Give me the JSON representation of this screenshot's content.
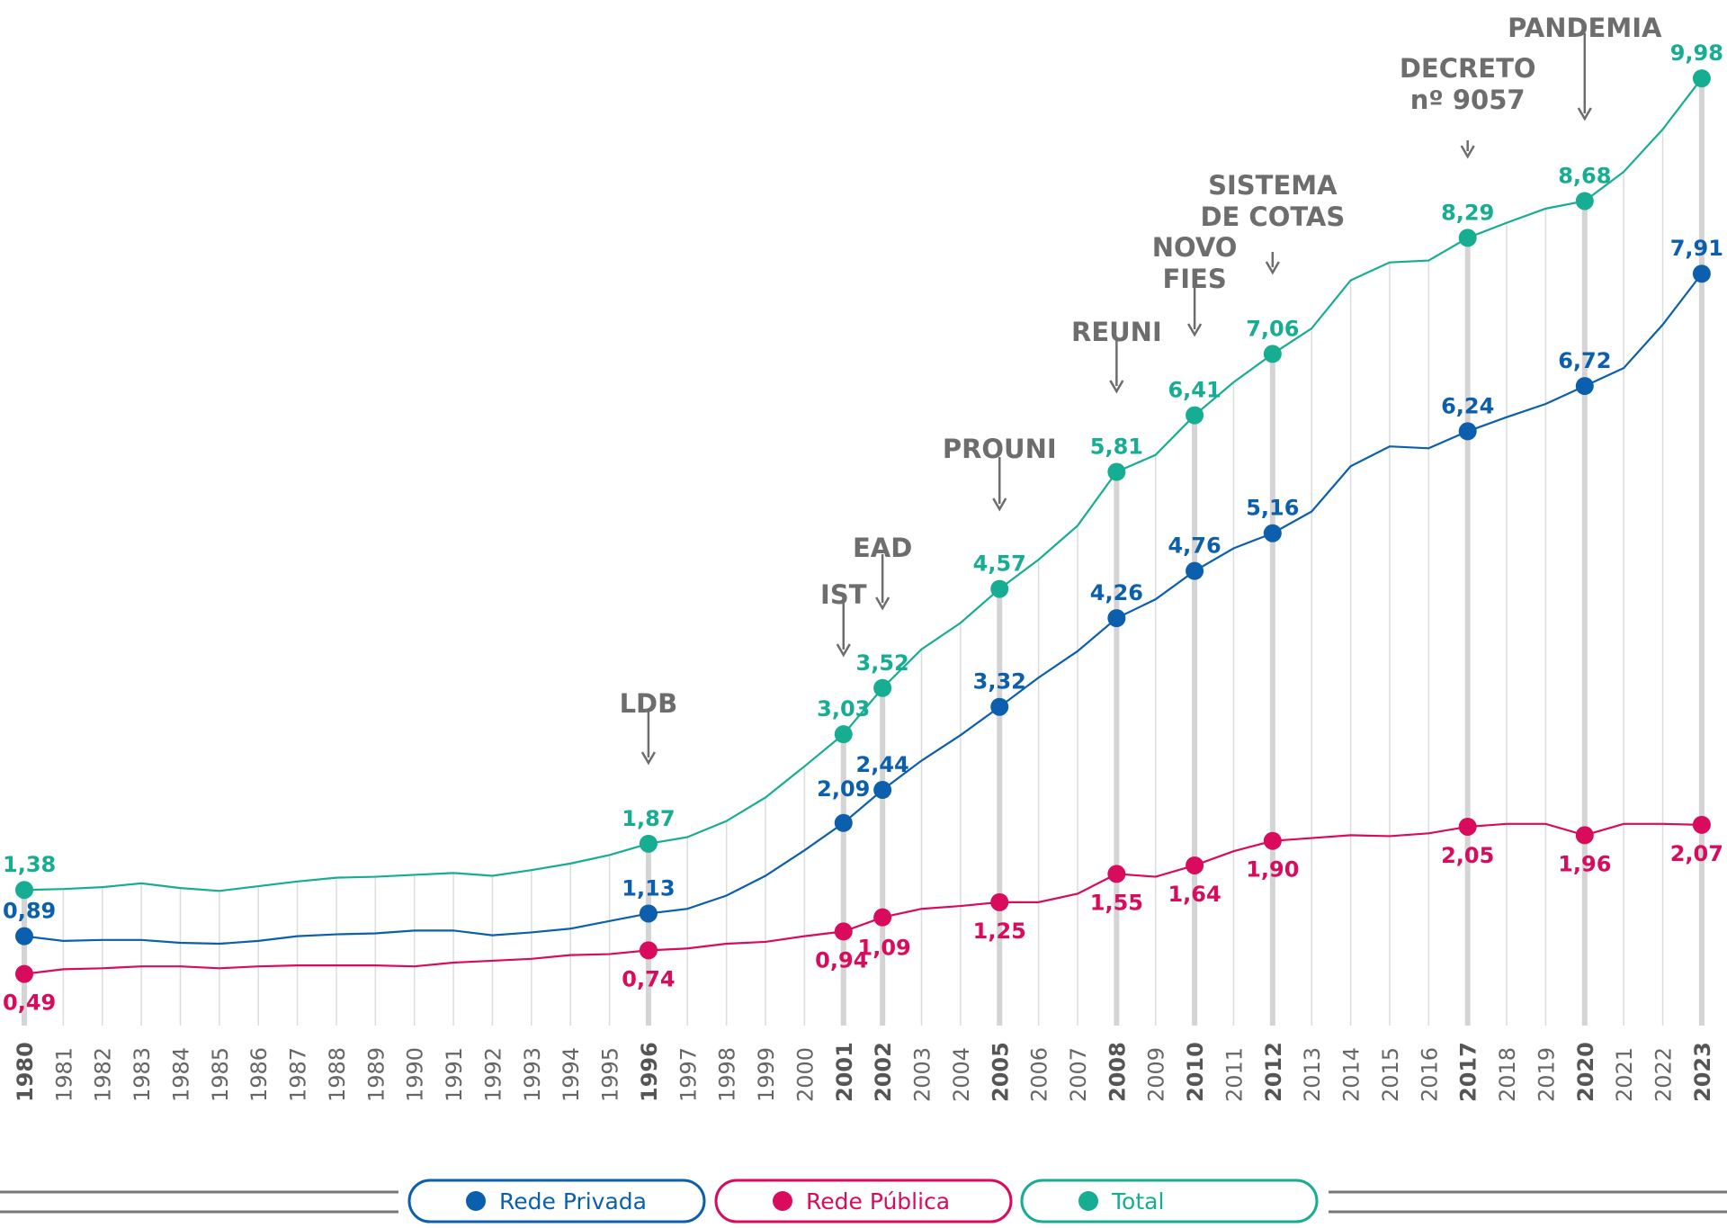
{
  "chart_data": {
    "type": "line",
    "title": "",
    "xlabel": "",
    "ylabel": "",
    "ylim": [
      0,
      10.5
    ],
    "grid": "vertical",
    "legend_position": "bottom",
    "x": [
      1980,
      1981,
      1982,
      1983,
      1984,
      1985,
      1986,
      1987,
      1988,
      1989,
      1990,
      1991,
      1992,
      1993,
      1994,
      1995,
      1996,
      1997,
      1998,
      1999,
      2000,
      2001,
      2002,
      2003,
      2004,
      2005,
      2006,
      2007,
      2008,
      2009,
      2010,
      2011,
      2012,
      2013,
      2014,
      2015,
      2016,
      2017,
      2018,
      2019,
      2020,
      2021,
      2022,
      2023
    ],
    "highlighted_years": [
      1980,
      1996,
      2001,
      2002,
      2005,
      2008,
      2010,
      2012,
      2017,
      2020,
      2023
    ],
    "series": [
      {
        "name": "Rede Privada",
        "color": "#0b5fad",
        "values": [
          0.89,
          0.84,
          0.85,
          0.85,
          0.82,
          0.81,
          0.84,
          0.89,
          0.91,
          0.92,
          0.95,
          0.95,
          0.9,
          0.93,
          0.97,
          1.05,
          1.13,
          1.18,
          1.32,
          1.53,
          1.8,
          2.09,
          2.44,
          2.75,
          3.02,
          3.32,
          3.63,
          3.91,
          4.26,
          4.46,
          4.76,
          5.0,
          5.16,
          5.39,
          5.87,
          6.08,
          6.06,
          6.24,
          6.39,
          6.53,
          6.72,
          6.91,
          7.37,
          7.91
        ]
      },
      {
        "name": "Rede Pública",
        "color": "#d80b5c",
        "values": [
          0.49,
          0.54,
          0.55,
          0.57,
          0.57,
          0.55,
          0.57,
          0.58,
          0.58,
          0.58,
          0.57,
          0.61,
          0.63,
          0.65,
          0.69,
          0.7,
          0.74,
          0.76,
          0.81,
          0.83,
          0.89,
          0.94,
          1.09,
          1.18,
          1.21,
          1.25,
          1.25,
          1.34,
          1.55,
          1.52,
          1.64,
          1.79,
          1.9,
          1.93,
          1.96,
          1.95,
          1.98,
          2.05,
          2.08,
          2.08,
          1.96,
          2.08,
          2.08,
          2.07
        ]
      },
      {
        "name": "Total",
        "color": "#17ad92",
        "values": [
          1.38,
          1.39,
          1.41,
          1.45,
          1.4,
          1.37,
          1.42,
          1.47,
          1.51,
          1.52,
          1.54,
          1.56,
          1.53,
          1.59,
          1.66,
          1.75,
          1.87,
          1.94,
          2.11,
          2.36,
          2.69,
          3.03,
          3.52,
          3.93,
          4.21,
          4.57,
          4.88,
          5.24,
          5.81,
          5.99,
          6.41,
          6.76,
          7.06,
          7.33,
          7.84,
          8.03,
          8.05,
          8.29,
          8.45,
          8.6,
          8.68,
          8.99,
          9.44,
          9.98
        ]
      }
    ],
    "annotations": [
      {
        "year": 1996,
        "lines": [
          "LDB"
        ]
      },
      {
        "year": 2001,
        "lines": [
          "IST"
        ]
      },
      {
        "year": 2002,
        "lines": [
          "EAD"
        ]
      },
      {
        "year": 2005,
        "lines": [
          "PROUNI"
        ]
      },
      {
        "year": 2008,
        "lines": [
          "REUNI"
        ]
      },
      {
        "year": 2010,
        "lines": [
          "NOVO",
          "FIES"
        ]
      },
      {
        "year": 2012,
        "lines": [
          "SISTEMA",
          "DE COTAS"
        ]
      },
      {
        "year": 2017,
        "lines": [
          "DECRETO",
          "nº 9057"
        ]
      },
      {
        "year": 2020,
        "lines": [
          "PANDEMIA"
        ]
      }
    ],
    "annotation_color": "#6d6d6d"
  },
  "legend": {
    "items": [
      {
        "label": "Rede Privada",
        "color": "#0b5fad"
      },
      {
        "label": "Rede Pública",
        "color": "#d80b5c"
      },
      {
        "label": "Total",
        "color": "#17ad92"
      }
    ]
  }
}
